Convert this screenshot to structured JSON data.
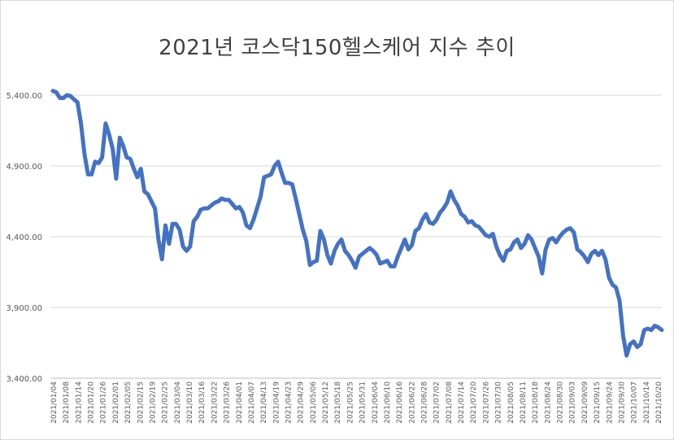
{
  "chart_data": {
    "type": "line",
    "title": "2021년 코스닥150헬스케어 지수 추이",
    "xlabel": "",
    "ylabel": "",
    "ylim": [
      3400,
      5400
    ],
    "yticks": [
      3400,
      3900,
      4400,
      4900,
      5400
    ],
    "ytick_labels": [
      "3,400.00",
      "3,900.00",
      "4,400.00",
      "4,900.00",
      "5,400.00"
    ],
    "grid": true,
    "legend": "none",
    "line_color": "#4472c4",
    "xtick_labels": [
      "2021/01/04",
      "2021/01/08",
      "2021/01/14",
      "2021/01/20",
      "2021/01/26",
      "2021/02/01",
      "2021/02/05",
      "2021/02/15",
      "2021/02/19",
      "2021/02/25",
      "2021/03/04",
      "2021/03/10",
      "2021/03/16",
      "2021/03/22",
      "2021/03/26",
      "2021/04/01",
      "2021/04/07",
      "2021/04/13",
      "2021/04/19",
      "2021/04/23",
      "2021/04/29",
      "2021/05/06",
      "2021/05/12",
      "2021/05/18",
      "2021/05/25",
      "2021/05/31",
      "2021/06/04",
      "2021/06/10",
      "2021/06/16",
      "2021/06/22",
      "2021/06/28",
      "2021/07/02",
      "2021/07/08",
      "2021/07/14",
      "2021/07/20",
      "2021/07/26",
      "2021/07/30",
      "2021/08/05",
      "2021/08/11",
      "2021/08/18",
      "2021/08/24",
      "2021/08/30",
      "2021/09/03",
      "2021/09/09",
      "2021/09/15",
      "2021/09/24",
      "2021/09/30",
      "2021/10/07",
      "2021/10/14",
      "2021/10/20"
    ],
    "series": [
      {
        "name": "",
        "values": [
          5430,
          5420,
          5380,
          5380,
          5400,
          5395,
          5370,
          5350,
          5200,
          4980,
          4840,
          4840,
          4930,
          4920,
          4960,
          5200,
          5120,
          5020,
          4810,
          5100,
          5040,
          4960,
          4950,
          4880,
          4820,
          4880,
          4720,
          4700,
          4650,
          4600,
          4380,
          4240,
          4480,
          4350,
          4490,
          4490,
          4450,
          4330,
          4300,
          4330,
          4510,
          4540,
          4590,
          4600,
          4600,
          4620,
          4640,
          4650,
          4670,
          4660,
          4660,
          4630,
          4600,
          4610,
          4570,
          4480,
          4460,
          4520,
          4600,
          4680,
          4820,
          4830,
          4840,
          4900,
          4930,
          4850,
          4780,
          4780,
          4770,
          4670,
          4560,
          4450,
          4370,
          4200,
          4220,
          4230,
          4440,
          4380,
          4270,
          4210,
          4300,
          4350,
          4380,
          4300,
          4270,
          4230,
          4180,
          4260,
          4280,
          4300,
          4320,
          4300,
          4270,
          4210,
          4220,
          4230,
          4190,
          4190,
          4260,
          4320,
          4380,
          4310,
          4340,
          4440,
          4460,
          4520,
          4560,
          4500,
          4490,
          4520,
          4570,
          4600,
          4640,
          4720,
          4660,
          4620,
          4560,
          4540,
          4500,
          4510,
          4480,
          4470,
          4440,
          4410,
          4400,
          4420,
          4330,
          4270,
          4230,
          4300,
          4310,
          4360,
          4380,
          4320,
          4350,
          4410,
          4380,
          4320,
          4260,
          4140,
          4310,
          4380,
          4390,
          4360,
          4400,
          4430,
          4450,
          4460,
          4430,
          4310,
          4290,
          4260,
          4220,
          4280,
          4300,
          4270,
          4300,
          4240,
          4110,
          4060,
          4040,
          3950,
          3700,
          3560,
          3640,
          3660,
          3620,
          3640,
          3740,
          3750,
          3740,
          3770,
          3760,
          3740
        ]
      }
    ]
  }
}
